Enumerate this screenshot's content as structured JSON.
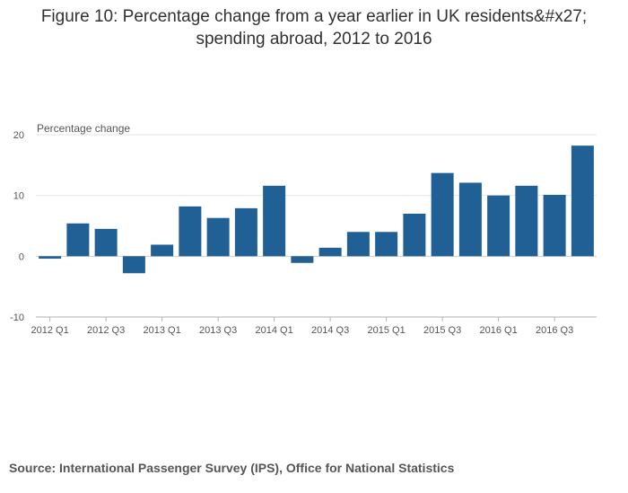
{
  "chart_data": {
    "type": "bar",
    "title_line1": "Figure 10: Percentage change from a year earlier in UK residents&#x27;",
    "title_line2": "spending abroad, 2012 to 2016",
    "ylabel": "Percentage change",
    "xlabel": "",
    "ylim": [
      -10,
      20
    ],
    "yticks": [
      "20",
      "10",
      "0",
      "-10"
    ],
    "ytick_values": [
      20,
      10,
      0,
      -10
    ],
    "categories": [
      "2012 Q1",
      "2012 Q2",
      "2012 Q3",
      "2012 Q4",
      "2013 Q1",
      "2013 Q2",
      "2013 Q3",
      "2013 Q4",
      "2014 Q1",
      "2014 Q2",
      "2014 Q3",
      "2014 Q4",
      "2015 Q1",
      "2015 Q2",
      "2015 Q3",
      "2015 Q4",
      "2016 Q1",
      "2016 Q2",
      "2016 Q3",
      "2016 Q4"
    ],
    "xtick_labels": [
      "2012 Q1",
      "2012 Q3",
      "2013 Q1",
      "2013 Q3",
      "2014 Q1",
      "2014 Q3",
      "2015 Q1",
      "2015 Q3",
      "2016 Q1",
      "2016 Q3"
    ],
    "values": [
      -0.4,
      5.4,
      4.5,
      -2.8,
      1.9,
      8.2,
      6.3,
      7.9,
      11.6,
      -1.1,
      1.4,
      4.0,
      4.0,
      7.0,
      13.7,
      12.1,
      10.0,
      11.6,
      10.1,
      18.2
    ],
    "bar_color": "#206095",
    "grid": true
  },
  "footer": {
    "source": "Source: International Passenger Survey (IPS), Office for National Statistics"
  }
}
